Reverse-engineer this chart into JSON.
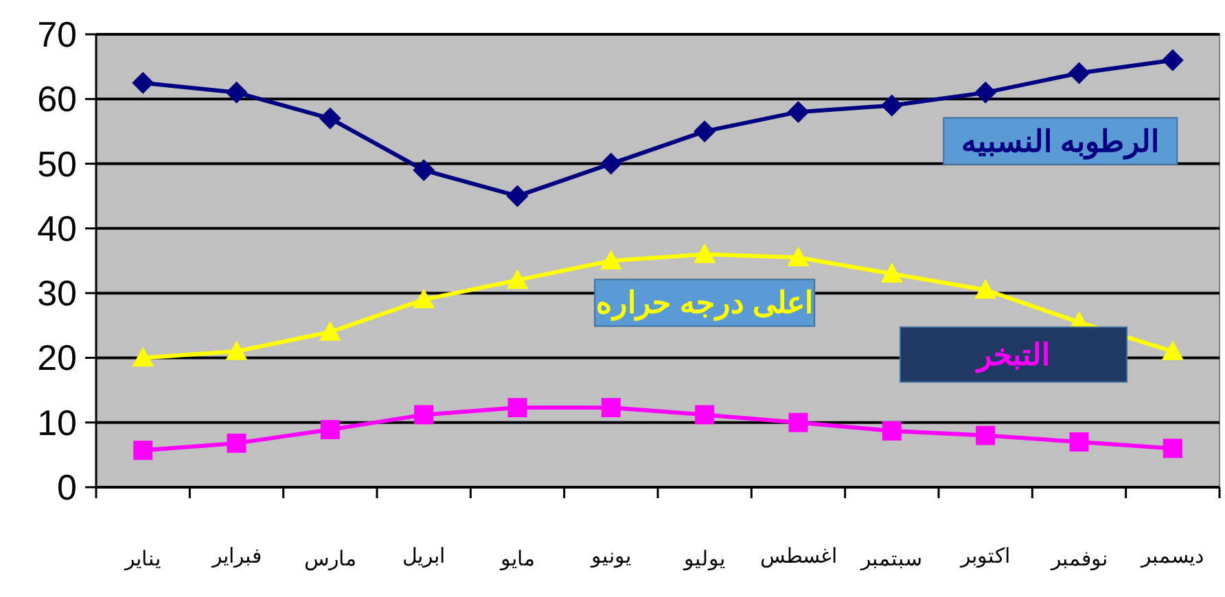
{
  "chart_data": {
    "type": "line",
    "categories": [
      "يناير",
      "فبراير",
      "مارس",
      "ابريل",
      "مايو",
      "يونيو",
      "يوليو",
      "اغسطس",
      "سبتمبر",
      "اكتوبر",
      "نوفمبر",
      "ديسمبر"
    ],
    "series": [
      {
        "name": "الرطوبه النسبيه",
        "color": "#000080",
        "marker": "diamond",
        "values": [
          62.5,
          61,
          57,
          49,
          45,
          50,
          55,
          58,
          59,
          61,
          64,
          66
        ]
      },
      {
        "name": "اعلى درجه حراره",
        "color": "#ffff00",
        "marker": "triangle",
        "values": [
          20,
          21,
          24,
          29,
          32,
          35,
          36,
          35.5,
          33,
          30.5,
          25.5,
          21
        ]
      },
      {
        "name": "التبخر",
        "color": "#ff00ff",
        "marker": "square",
        "values": [
          5.7,
          6.8,
          8.9,
          11.2,
          12.3,
          12.3,
          11.2,
          10,
          8.7,
          8,
          7,
          6
        ]
      }
    ],
    "ylim": [
      0,
      70
    ],
    "yticks": [
      0,
      10,
      20,
      30,
      40,
      50,
      60,
      70
    ],
    "grid": "y",
    "line_style": "solid"
  }
}
